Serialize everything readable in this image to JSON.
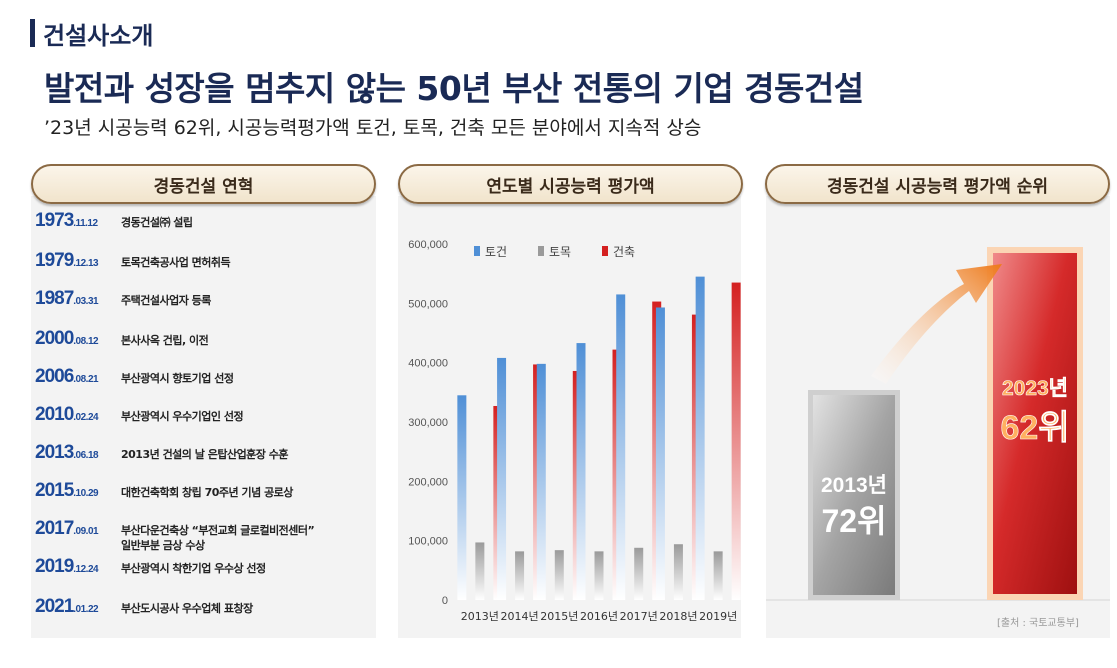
{
  "section_label": "건설사소개",
  "headline": "발전과 성장을 멈추지 않는 50년 부산 전통의 기업 경동건설",
  "subline": "’23년 시공능력 62위, 시공능력평가액 토건, 토목, 건축 모든 분야에서 지속적 상승",
  "history": {
    "title": "경동건설 연혁",
    "items": [
      {
        "year": "1973",
        "date": ".11.12",
        "text": "경동건설㈜ 설립"
      },
      {
        "year": "1979",
        "date": ".12.13",
        "text": "토목건축공사업 면허취득"
      },
      {
        "year": "1987",
        "date": ".03.31",
        "text": "주택건설사업자 등록"
      },
      {
        "year": "2000",
        "date": ".08.12",
        "text": "본사사옥 건립, 이전"
      },
      {
        "year": "2006",
        "date": ".08.21",
        "text": "부산광역시 향토기업 선정"
      },
      {
        "year": "2010",
        "date": ".02.24",
        "text": "부산광역시 우수기업인 선정"
      },
      {
        "year": "2013",
        "date": ".06.18",
        "text": "2013년 건설의 날 은탑산업훈장 수훈"
      },
      {
        "year": "2015",
        "date": ".10.29",
        "text": "대한건축학회 창립 70주년 기념 공로상"
      },
      {
        "year": "2017",
        "date": ".09.01",
        "text": "부산다운건축상 “부전교회 글로컬비전센터”\n일반부분 금상 수상"
      },
      {
        "year": "2019",
        "date": ".12.24",
        "text": "부산광역시 착한기업 우수상  선정"
      },
      {
        "year": "2021",
        "date": ".01.22",
        "text": "부산도시공사 우수업체 표창장"
      }
    ]
  },
  "chart_title": "연도별 시공능력 평가액",
  "chart_data": {
    "type": "bar",
    "categories": [
      "2013년",
      "2014년",
      "2015년",
      "2016년",
      "2017년",
      "2018년",
      "2019년"
    ],
    "series": [
      {
        "name": "토건",
        "color": "#4f8fd6",
        "values": [
          345000,
          408000,
          398000,
          433000,
          515000,
          493000,
          545000
        ]
      },
      {
        "name": "토목",
        "color": "#9a9a9a",
        "values": [
          97000,
          82000,
          84000,
          82000,
          88000,
          94000,
          82000
        ]
      },
      {
        "name": "건축",
        "color": "#d42020",
        "values": [
          327000,
          397000,
          386000,
          422000,
          503000,
          481000,
          535000
        ]
      }
    ],
    "ylim": [
      0,
      600000
    ],
    "yticks": [
      0,
      100000,
      200000,
      300000,
      400000,
      500000,
      600000
    ],
    "ytick_labels": [
      "0",
      "100,000",
      "200,000",
      "300,000",
      "400,000",
      "500,000",
      "600,000"
    ],
    "legend_position": "top-left",
    "grid": false
  },
  "rank": {
    "title": "경동건설 시공능력 평가액 순위",
    "items": [
      {
        "year": "2013년",
        "rank": "72위"
      },
      {
        "year": "2023년",
        "rank": "62위"
      }
    ],
    "source": "[출처 : 국토교통부]"
  }
}
